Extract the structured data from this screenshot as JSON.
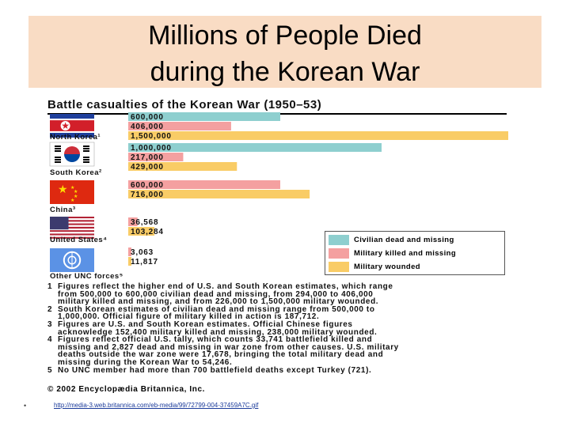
{
  "slide": {
    "title_line1": "Millions of People Died",
    "title_line2": "during the Korean War",
    "bullet": "•",
    "link": "http://media-3.web.britannica.com/eb-media/99/72799-004-37459A7C.gif"
  },
  "chart_data": {
    "type": "bar",
    "orientation": "horizontal",
    "title": "Battle casualties of the Korean War (1950–53)",
    "categories": [
      "North Korea¹",
      "South Korea²",
      "China³",
      "United States⁴",
      "Other UNC forces⁵"
    ],
    "series": [
      {
        "name": "Civilian dead and missing",
        "color": "#8ecfcf",
        "values": [
          600000,
          1000000,
          null,
          null,
          null
        ]
      },
      {
        "name": "Military killed and missing",
        "color": "#f4a0a0",
        "values": [
          406000,
          217000,
          600000,
          36568,
          3063
        ]
      },
      {
        "name": "Military wounded",
        "color": "#f9cc66",
        "values": [
          1500000,
          429000,
          716000,
          103284,
          11817
        ]
      }
    ],
    "value_labels": [
      [
        "600,000",
        "406,000",
        "1,500,000"
      ],
      [
        "1,000,000",
        "217,000",
        "429,000"
      ],
      [
        "600,000",
        "716,000"
      ],
      [
        "36,568",
        "103,284"
      ],
      [
        "3,063",
        "11,817"
      ]
    ],
    "xlim": [
      0,
      1500000
    ],
    "grid": false,
    "legend_position": "right",
    "flags": [
      "north-korea-flag",
      "south-korea-flag",
      "china-flag",
      "united-states-flag",
      "un-flag"
    ],
    "notes": [
      {
        "num": "1",
        "lines": [
          "Figures reflect the higher end of U.S. and South Korean estimates, which range",
          "from 500,000 to 600,000 civilian dead and missing, from 294,000 to 406,000",
          "military killed and missing, and from 226,000 to 1,500,000 military wounded."
        ]
      },
      {
        "num": "2",
        "lines": [
          "South Korean estimates of civilian dead and missing range from 500,000 to",
          "1,000,000. Official figure of military killed in action is 187,712."
        ]
      },
      {
        "num": "3",
        "lines": [
          "Figures are U.S. and South Korean estimates. Official Chinese figures",
          "acknowledge 152,400 military killed and missing, 238,000 military wounded."
        ]
      },
      {
        "num": "4",
        "lines": [
          "Figures reflect official U.S. tally, which counts 33,741 battlefield killed and",
          "missing and 2,827 dead and missing in war zone from other causes. U.S. military",
          "deaths outside the war zone were 17,678, bringing the total military dead and",
          "missing during the Korean War to 54,246."
        ]
      },
      {
        "num": "5",
        "lines": [
          "No UNC member had more than 700 battlefield deaths except Turkey (721)."
        ]
      }
    ],
    "copyright": "© 2002 Encyclopædia Britannica, Inc."
  }
}
